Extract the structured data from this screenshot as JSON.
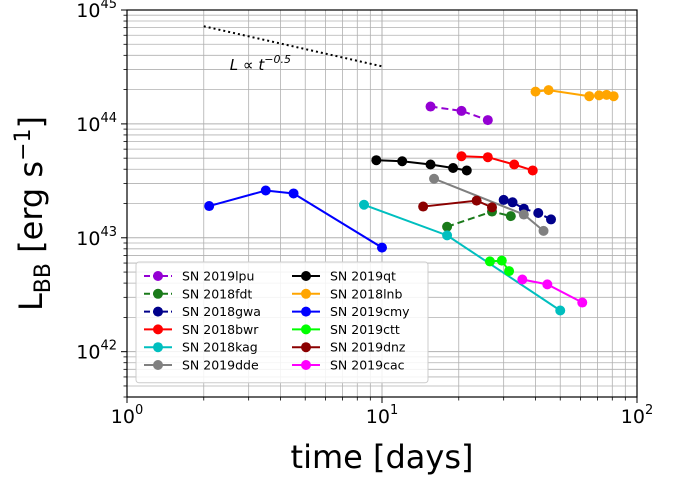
{
  "chart_data": {
    "type": "line",
    "xlabel": "time [days]",
    "ylabel_main": "L",
    "ylabel_sub": "BB",
    "ylabel_rest": " [erg s",
    "ylabel_sup": "−1",
    "ylabel_close": "]",
    "x_scale": "log",
    "y_scale": "log",
    "xlim": [
      1,
      100
    ],
    "ylim": [
      4e+41,
      1e+45
    ],
    "x_ticks": [
      {
        "base": "10",
        "exp": "0",
        "value": 1
      },
      {
        "base": "10",
        "exp": "1",
        "value": 10
      },
      {
        "base": "10",
        "exp": "2",
        "value": 100
      }
    ],
    "y_ticks": [
      {
        "base": "10",
        "exp": "42",
        "value": 1e+42
      },
      {
        "base": "10",
        "exp": "43",
        "value": 1e+43
      },
      {
        "base": "10",
        "exp": "44",
        "value": 1e+44
      },
      {
        "base": "10",
        "exp": "45",
        "value": 1e+45
      }
    ],
    "grid": "major and minor",
    "legend_position": "bottom-left",
    "reference_line": {
      "label_prefix": "L ∝ t",
      "label_exponent": "−0.5",
      "x": [
        2,
        10
      ],
      "y": [
        7.2e+44,
        3.2e+44
      ],
      "style": "dotted",
      "color": "#000000"
    },
    "series": [
      {
        "name": "SN 2019lpu",
        "color": "#9400D3",
        "dash": "dashed",
        "x": [
          15.5,
          20.5,
          26
        ],
        "y": [
          1.42e+44,
          1.3e+44,
          1.08e+44
        ]
      },
      {
        "name": "SN 2018fdt",
        "color": "#1a7a1a",
        "dash": "dashed",
        "x": [
          18,
          27,
          32
        ],
        "y": [
          1.25e+43,
          1.7e+43,
          1.55e+43
        ]
      },
      {
        "name": "SN 2018gwa",
        "color": "#00008B",
        "dash": "dashed",
        "x": [
          30,
          32.5,
          36,
          41,
          46
        ],
        "y": [
          2.15e+43,
          2.05e+43,
          1.8e+43,
          1.65e+43,
          1.45e+43
        ]
      },
      {
        "name": "SN 2018bwr",
        "color": "#FF0000",
        "dash": "solid",
        "x": [
          20.5,
          26,
          33,
          39
        ],
        "y": [
          5.2e+43,
          5.1e+43,
          4.4e+43,
          3.9e+43
        ]
      },
      {
        "name": "SN 2018kag",
        "color": "#00BFBF",
        "dash": "solid",
        "x": [
          8.5,
          18,
          50
        ],
        "y": [
          1.95e+43,
          1.05e+43,
          2.3e+42
        ]
      },
      {
        "name": "SN 2019dde",
        "color": "#808080",
        "dash": "solid",
        "x": [
          16,
          36,
          43
        ],
        "y": [
          3.3e+43,
          1.6e+43,
          1.15e+43
        ]
      },
      {
        "name": "SN 2019qt",
        "color": "#000000",
        "dash": "solid",
        "x": [
          9.5,
          12,
          15.5,
          19,
          21.5
        ],
        "y": [
          4.8e+43,
          4.7e+43,
          4.4e+43,
          4.1e+43,
          3.9e+43
        ]
      },
      {
        "name": "SN 2018lnb",
        "color": "#FFA500",
        "dash": "solid",
        "x": [
          40,
          45,
          65,
          71,
          76,
          81
        ],
        "y": [
          1.92e+44,
          1.98e+44,
          1.75e+44,
          1.78e+44,
          1.8e+44,
          1.75e+44
        ]
      },
      {
        "name": "SN 2019cmy",
        "color": "#0000FF",
        "dash": "solid",
        "x": [
          2.1,
          3.5,
          4.5,
          10
        ],
        "y": [
          1.9e+43,
          2.6e+43,
          2.45e+43,
          8.2e+42
        ]
      },
      {
        "name": "SN 2019ctt",
        "color": "#00FF00",
        "dash": "solid",
        "x": [
          26.5,
          29.5,
          31.5
        ],
        "y": [
          6.2e+42,
          6.3e+42,
          5.1e+42
        ]
      },
      {
        "name": "SN 2019dnz",
        "color": "#8B0000",
        "dash": "solid",
        "x": [
          14.5,
          23.5,
          27
        ],
        "y": [
          1.88e+43,
          2.12e+43,
          1.85e+43
        ]
      },
      {
        "name": "SN 2019cac",
        "color": "#FF00FF",
        "dash": "solid",
        "x": [
          35.5,
          44.5,
          61
        ],
        "y": [
          4.3e+42,
          3.9e+42,
          2.7e+42
        ]
      }
    ]
  }
}
